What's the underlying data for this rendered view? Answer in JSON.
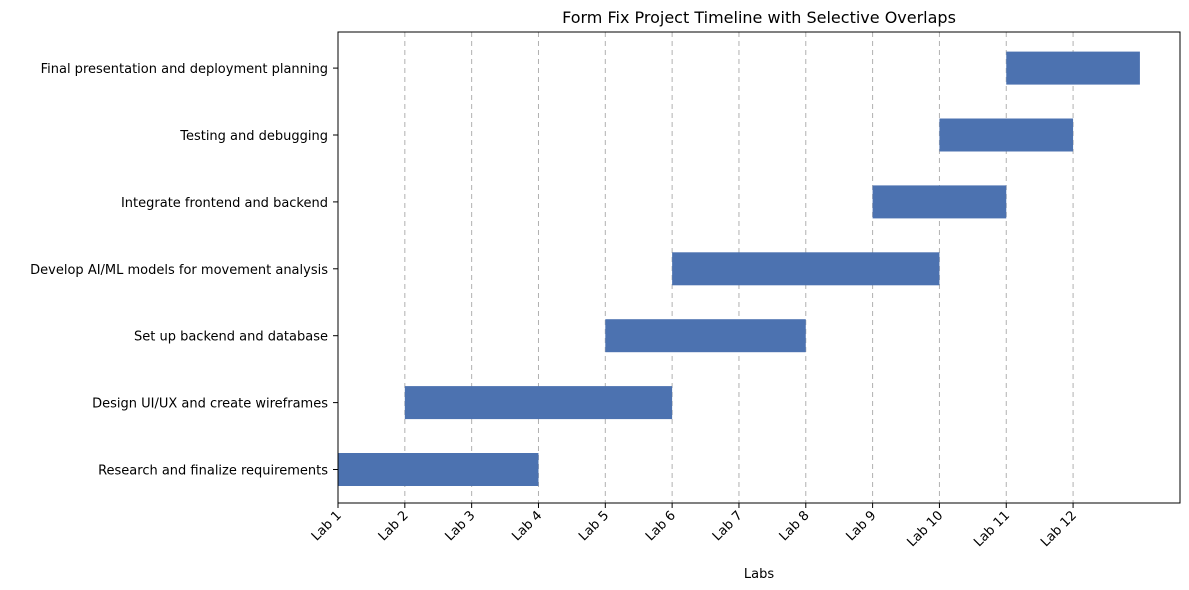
{
  "chart_data": {
    "type": "bar",
    "orientation": "horizontal",
    "title": "Form Fix Project Timeline with Selective Overlaps",
    "xlabel": "Labs",
    "ylabel": "",
    "x_ticks": [
      "Lab 1",
      "Lab 2",
      "Lab 3",
      "Lab 4",
      "Lab 5",
      "Lab 6",
      "Lab 7",
      "Lab 8",
      "Lab 9",
      "Lab 10",
      "Lab 11",
      "Lab 12"
    ],
    "xlim": [
      1,
      13.6
    ],
    "grid": "x dashed",
    "bar_color": "#4c72b0",
    "tasks": [
      {
        "name": "Research and finalize requirements",
        "start": 1,
        "end": 4
      },
      {
        "name": "Design UI/UX and create wireframes",
        "start": 2,
        "end": 6
      },
      {
        "name": "Set up backend and database",
        "start": 5,
        "end": 8
      },
      {
        "name": "Develop AI/ML models for movement analysis",
        "start": 6,
        "end": 10
      },
      {
        "name": "Integrate frontend and backend",
        "start": 9,
        "end": 11
      },
      {
        "name": "Testing and debugging",
        "start": 10,
        "end": 12
      },
      {
        "name": "Final presentation and deployment planning",
        "start": 11,
        "end": 13
      }
    ]
  }
}
